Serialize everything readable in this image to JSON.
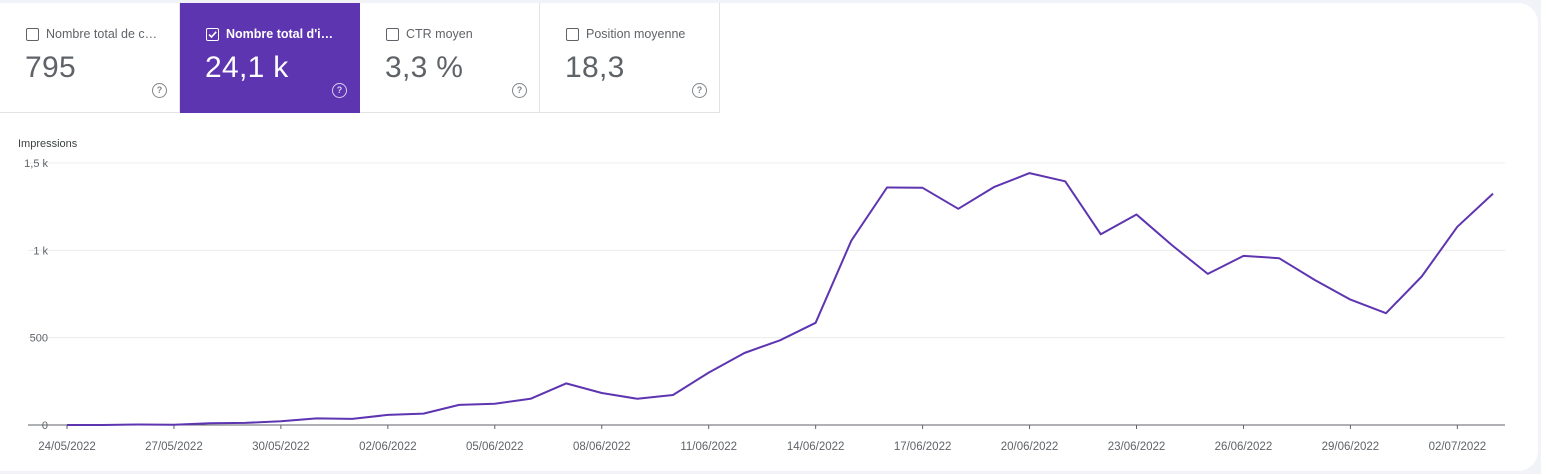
{
  "metrics": [
    {
      "label": "Nombre total de c…",
      "value": "795",
      "active": false
    },
    {
      "label": "Nombre total d'im…",
      "value": "24,1 k",
      "active": true
    },
    {
      "label": "CTR moyen",
      "value": "3,3 %",
      "active": false
    },
    {
      "label": "Position moyenne",
      "value": "18,3",
      "active": false
    }
  ],
  "help_glyph": "?",
  "chart_data": {
    "type": "line",
    "ylabel": "Impressions",
    "ylim": [
      0,
      1500
    ],
    "y_ticks": [
      {
        "value": 0,
        "label": "0"
      },
      {
        "value": 500,
        "label": "500"
      },
      {
        "value": 1000,
        "label": "1 k"
      },
      {
        "value": 1500,
        "label": "1,5 k"
      }
    ],
    "grid": true,
    "x_tick_labels": [
      "24/05/2022",
      "27/05/2022",
      "30/05/2022",
      "02/06/2022",
      "05/06/2022",
      "08/06/2022",
      "11/06/2022",
      "14/06/2022",
      "17/06/2022",
      "20/06/2022",
      "23/06/2022",
      "26/06/2022",
      "29/06/2022",
      "02/07/2022"
    ],
    "x": [
      "24/05/2022",
      "25/05/2022",
      "26/05/2022",
      "27/05/2022",
      "28/05/2022",
      "29/05/2022",
      "30/05/2022",
      "31/05/2022",
      "01/06/2022",
      "02/06/2022",
      "03/06/2022",
      "04/06/2022",
      "05/06/2022",
      "06/06/2022",
      "07/06/2022",
      "08/06/2022",
      "09/06/2022",
      "10/06/2022",
      "11/06/2022",
      "12/06/2022",
      "13/06/2022",
      "14/06/2022",
      "15/06/2022",
      "16/06/2022",
      "17/06/2022",
      "18/06/2022",
      "19/06/2022",
      "20/06/2022",
      "21/06/2022",
      "22/06/2022",
      "23/06/2022",
      "24/06/2022",
      "25/06/2022",
      "26/06/2022",
      "27/06/2022",
      "28/06/2022",
      "29/06/2022",
      "30/06/2022",
      "01/07/2022",
      "02/07/2022",
      "03/07/2022"
    ],
    "series": [
      {
        "color": "#5e35b1",
        "values": [
          0,
          0,
          3,
          2,
          10,
          12,
          22,
          38,
          35,
          58,
          65,
          115,
          122,
          150,
          238,
          183,
          150,
          172,
          300,
          412,
          485,
          585,
          1055,
          1360,
          1358,
          1238,
          1362,
          1442,
          1395,
          1092,
          1205,
          1028,
          865,
          968,
          955,
          830,
          718,
          640,
          850,
          1135,
          1325
        ]
      }
    ]
  }
}
